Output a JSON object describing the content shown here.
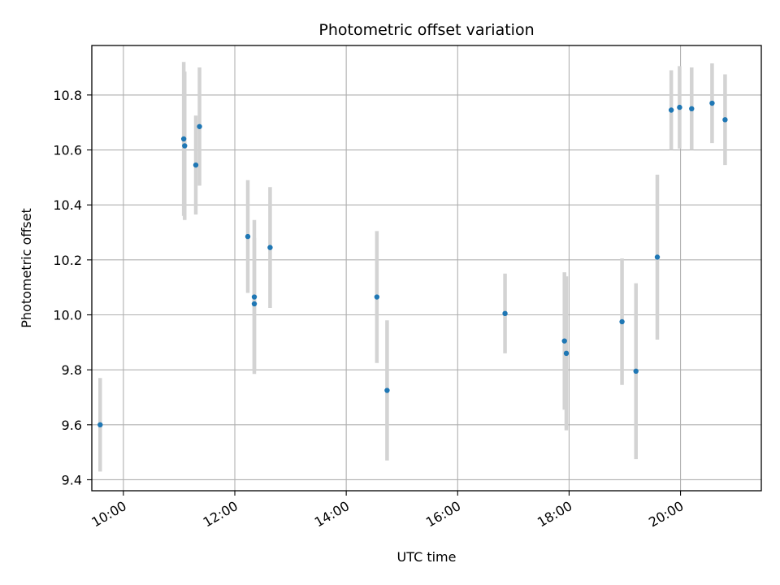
{
  "chart_data": {
    "type": "scatter",
    "title": "Photometric offset variation",
    "xlabel": "UTC time",
    "ylabel": "Photometric offset",
    "x_unit": "HH:MM",
    "xlim": [
      "09:26",
      "21:27"
    ],
    "ylim": [
      9.36,
      10.98
    ],
    "x_ticks": [
      "10:00",
      "12:00",
      "14:00",
      "16:00",
      "18:00",
      "20:00"
    ],
    "y_ticks": [
      9.4,
      9.6,
      9.8,
      10.0,
      10.2,
      10.4,
      10.6,
      10.8
    ],
    "grid": true,
    "point_color": "#1f77b4",
    "errorbar_color": "#d3d3d3",
    "series": [
      {
        "points": [
          {
            "x": "09:35",
            "y": 9.6,
            "err": 0.17
          },
          {
            "x": "11:05",
            "y": 10.64,
            "err": 0.28
          },
          {
            "x": "11:06",
            "y": 10.615,
            "err": 0.27
          },
          {
            "x": "11:18",
            "y": 10.545,
            "err": 0.18
          },
          {
            "x": "11:22",
            "y": 10.685,
            "err": 0.215
          },
          {
            "x": "12:14",
            "y": 10.285,
            "err": 0.205
          },
          {
            "x": "12:21",
            "y": 10.065,
            "err": 0.28
          },
          {
            "x": "12:21",
            "y": 10.04,
            "err": 0.24
          },
          {
            "x": "12:38",
            "y": 10.245,
            "err": 0.22
          },
          {
            "x": "14:33",
            "y": 10.065,
            "err": 0.24
          },
          {
            "x": "14:44",
            "y": 9.725,
            "err": 0.255
          },
          {
            "x": "16:51",
            "y": 10.005,
            "err": 0.145
          },
          {
            "x": "17:55",
            "y": 9.905,
            "err": 0.25
          },
          {
            "x": "17:57",
            "y": 9.86,
            "err": 0.28
          },
          {
            "x": "18:57",
            "y": 9.975,
            "err": 0.23
          },
          {
            "x": "19:12",
            "y": 9.795,
            "err": 0.32
          },
          {
            "x": "19:35",
            "y": 10.21,
            "err": 0.3
          },
          {
            "x": "19:50",
            "y": 10.745,
            "err": 0.145
          },
          {
            "x": "19:59",
            "y": 10.755,
            "err": 0.15
          },
          {
            "x": "20:12",
            "y": 10.75,
            "err": 0.15
          },
          {
            "x": "20:34",
            "y": 10.77,
            "err": 0.145
          },
          {
            "x": "20:48",
            "y": 10.71,
            "err": 0.165
          }
        ]
      }
    ]
  }
}
